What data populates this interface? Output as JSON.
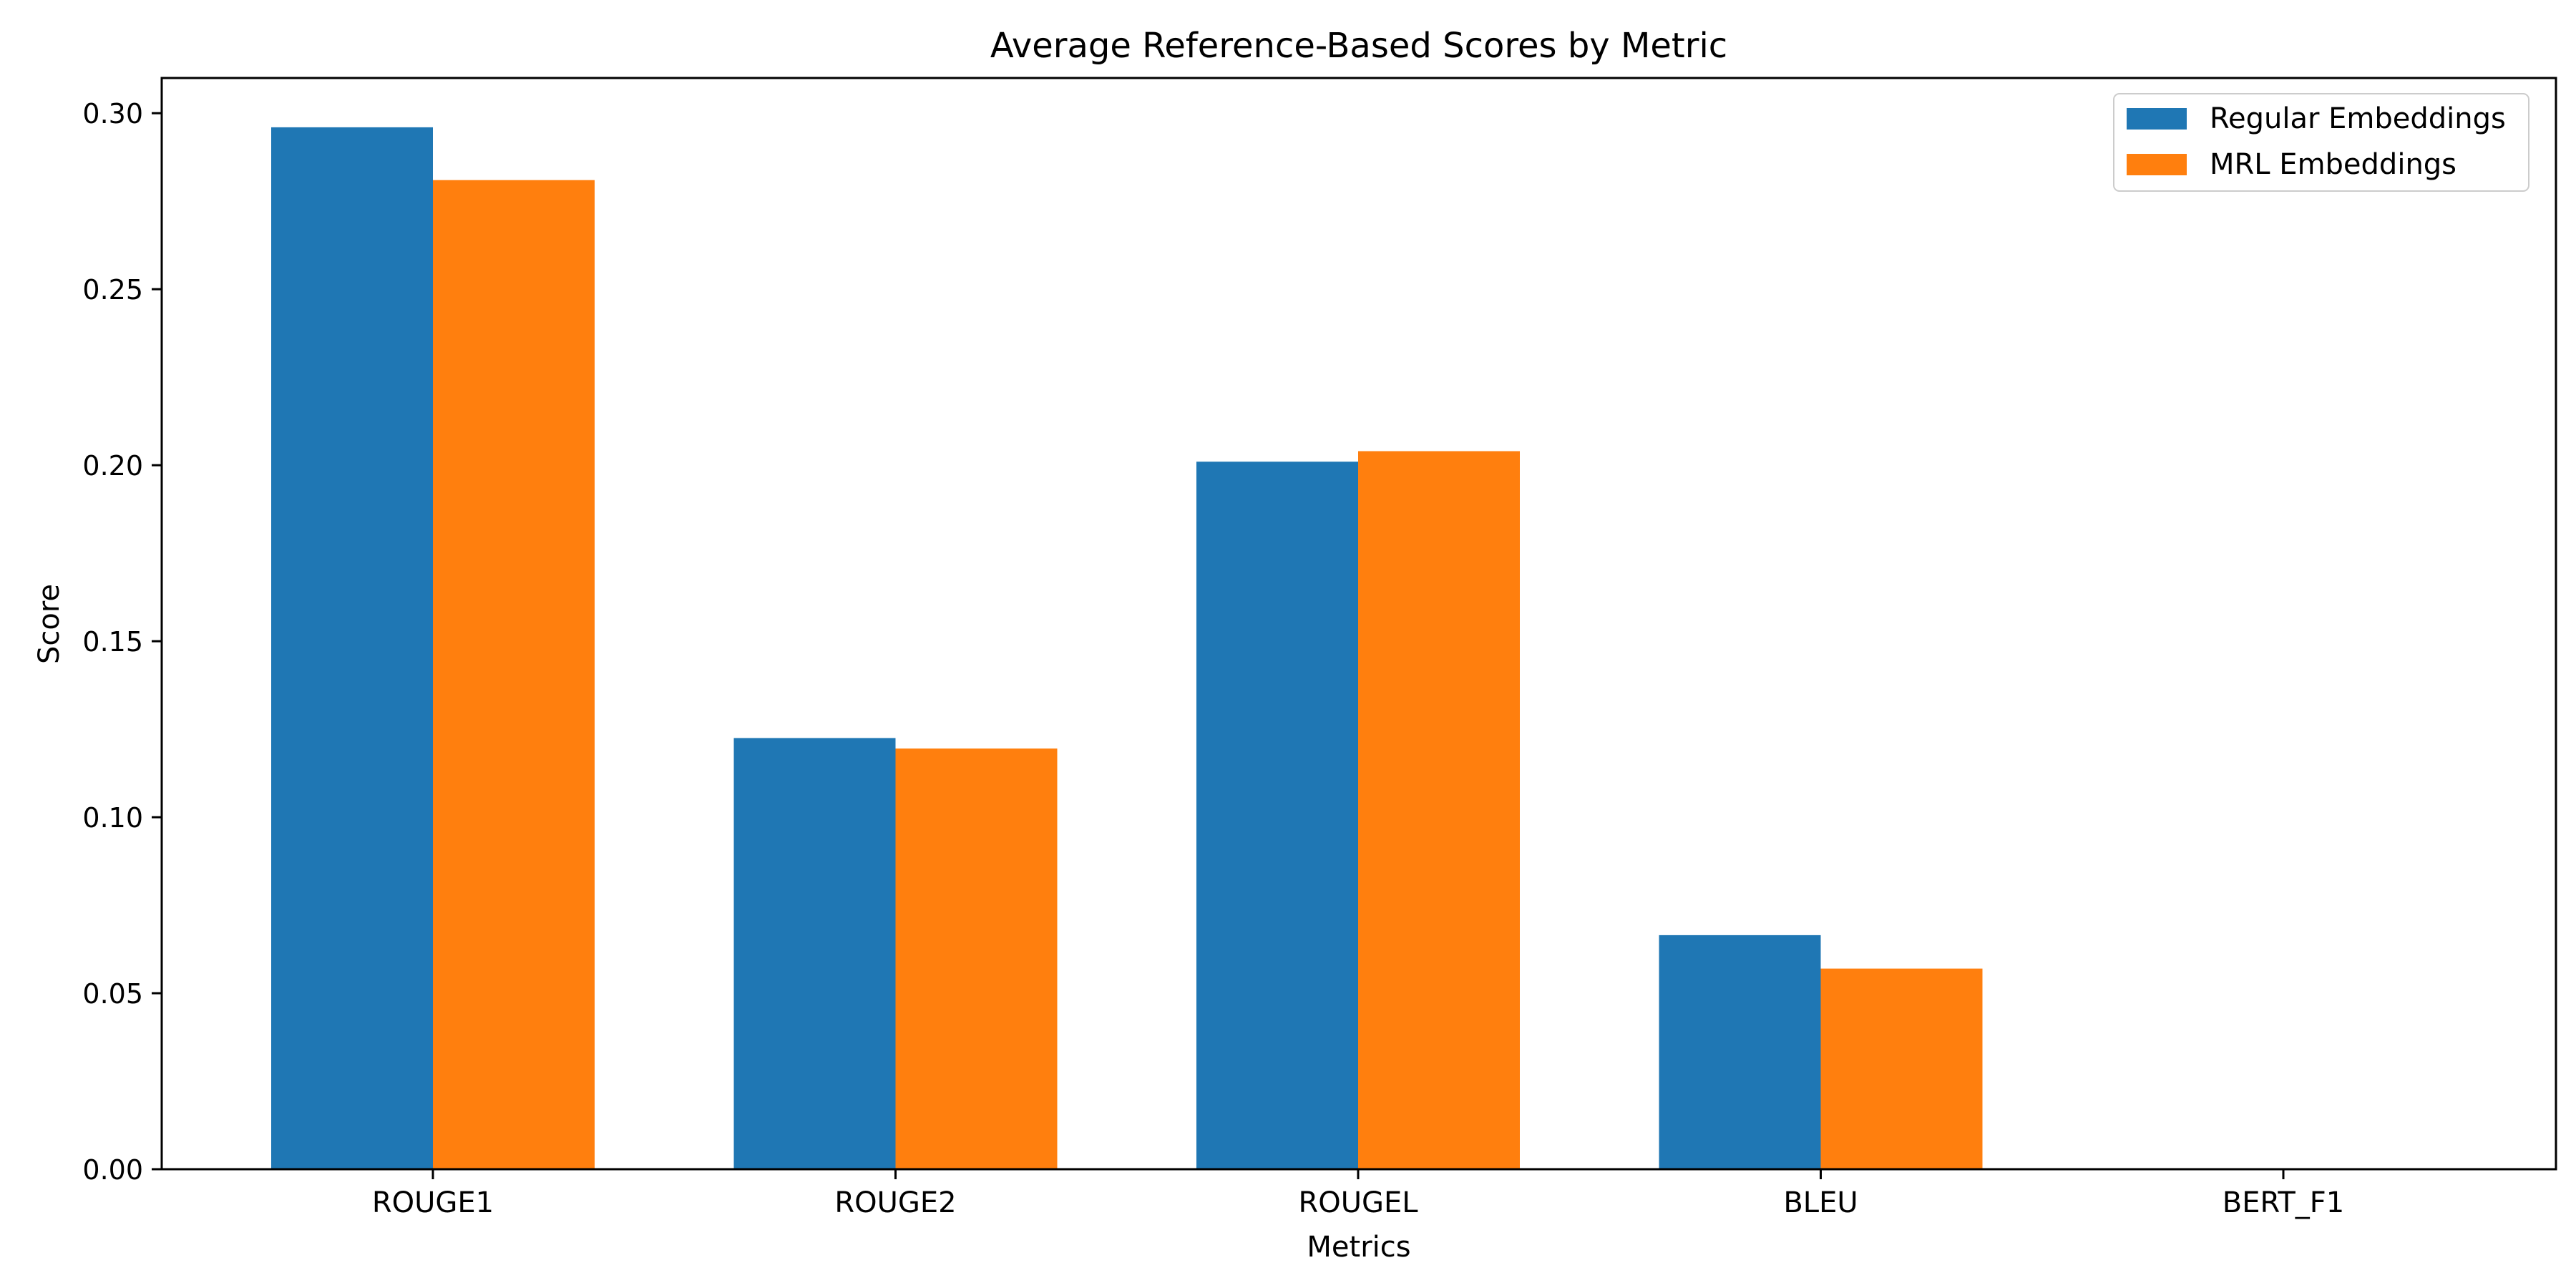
{
  "chart_data": {
    "type": "bar",
    "title": "Average Reference-Based Scores by Metric",
    "xlabel": "Metrics",
    "ylabel": "Score",
    "categories": [
      "ROUGE1",
      "ROUGE2",
      "ROUGEL",
      "BLEU",
      "BERT_F1"
    ],
    "series": [
      {
        "name": "Regular Embeddings",
        "color": "#1f77b4",
        "values": [
          0.296,
          0.1225,
          0.201,
          0.0665,
          0.0
        ]
      },
      {
        "name": "MRL Embeddings",
        "color": "#ff7f0e",
        "values": [
          0.281,
          0.1195,
          0.204,
          0.057,
          0.0
        ]
      }
    ],
    "ylim": [
      0,
      0.31
    ],
    "yticks": [
      "0.00",
      "0.05",
      "0.10",
      "0.15",
      "0.20",
      "0.25",
      "0.30"
    ],
    "grid": false,
    "legend_position": "top-right"
  }
}
